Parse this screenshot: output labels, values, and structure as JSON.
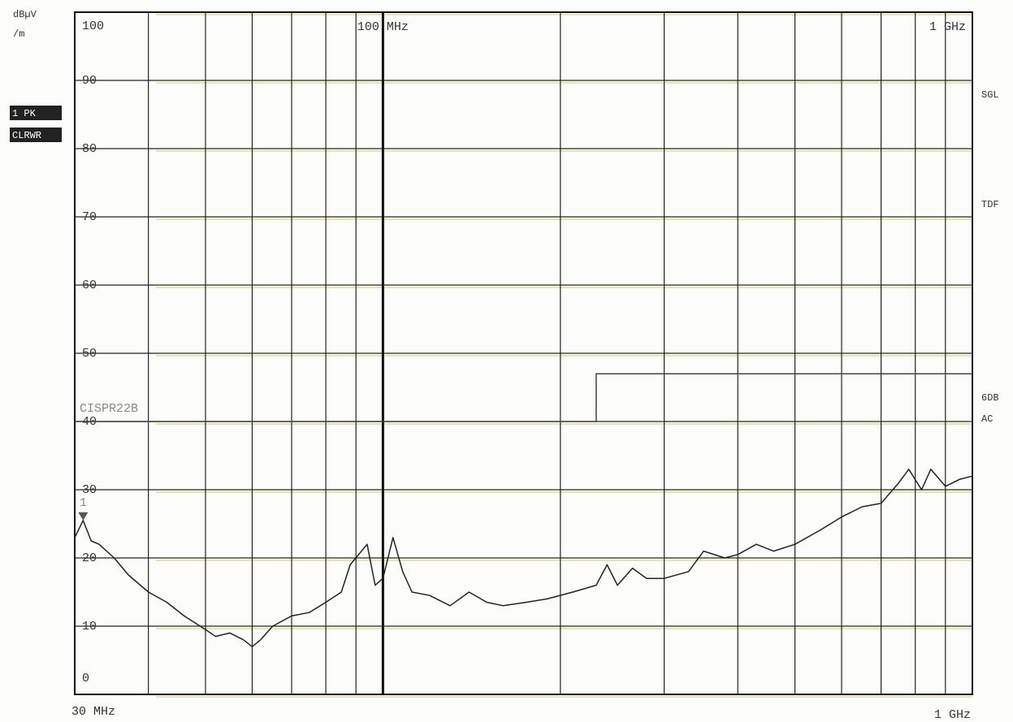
{
  "chart_data": {
    "type": "line",
    "ylabel_lines": [
      "dBµV",
      "/m"
    ],
    "trace_labels": [
      "1 PK",
      "CLRWR"
    ],
    "side_labels": [
      "SGL",
      "TDF",
      "6DB",
      "AC"
    ],
    "start_label": "30 MHz",
    "stop_label": "1 GHz",
    "xscale": "log",
    "xlim": [
      30,
      1000
    ],
    "ylim": [
      0,
      100
    ],
    "yticks": [
      0,
      10,
      20,
      30,
      40,
      50,
      60,
      70,
      80,
      90,
      100
    ],
    "xticks": [
      {
        "value": 100,
        "label": "100 MHz"
      },
      {
        "value": 1000,
        "label": "1 GHz"
      }
    ],
    "xgrid": [
      40,
      50,
      60,
      70,
      80,
      90,
      200,
      300,
      400,
      500,
      600,
      700,
      800,
      900
    ],
    "grid": true,
    "x": [
      30,
      31,
      32,
      33,
      35,
      37,
      40,
      43,
      46,
      50,
      52,
      55,
      58,
      60,
      62,
      65,
      70,
      75,
      80,
      85,
      88,
      94,
      97,
      100,
      104,
      108,
      112,
      120,
      130,
      140,
      150,
      160,
      175,
      190,
      210,
      230,
      240,
      250,
      265,
      280,
      300,
      330,
      350,
      380,
      400,
      430,
      460,
      500,
      550,
      600,
      650,
      700,
      750,
      780,
      820,
      850,
      900,
      950,
      1000
    ],
    "series": [
      {
        "name": "1 PK",
        "color": "#222222",
        "values": [
          23,
          25.5,
          22.5,
          22,
          20,
          17.5,
          15,
          13.5,
          11.5,
          9.5,
          8.5,
          9,
          8,
          7,
          8,
          10,
          11.5,
          12,
          13.5,
          15,
          19,
          22,
          16,
          17,
          23,
          18,
          15,
          14.5,
          13,
          15,
          13.5,
          13,
          13.5,
          14,
          15,
          16,
          19,
          16,
          18.5,
          17,
          17,
          18,
          21,
          20,
          20.5,
          22,
          21,
          22,
          24,
          26,
          27.5,
          28,
          31,
          33,
          30,
          33,
          30.5,
          31.5,
          32
        ]
      }
    ],
    "limit_line": {
      "name": "CISPR22B",
      "color": "#444444",
      "x": [
        30,
        230,
        230,
        1000
      ],
      "values": [
        40,
        40,
        47,
        47
      ]
    },
    "marker": {
      "label": "1",
      "x": 31,
      "value": 25.5
    }
  }
}
